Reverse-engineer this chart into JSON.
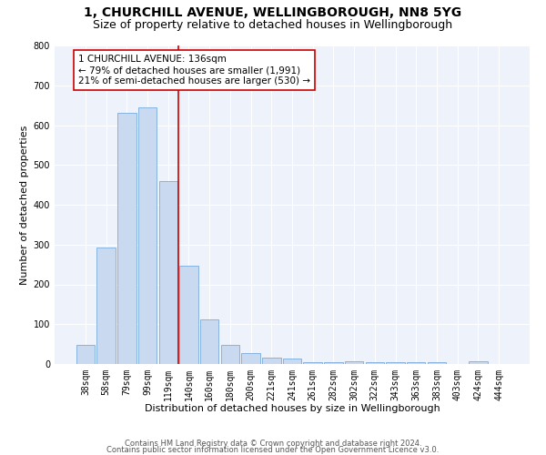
{
  "title1": "1, CHURCHILL AVENUE, WELLINGBOROUGH, NN8 5YG",
  "title2": "Size of property relative to detached houses in Wellingborough",
  "xlabel": "Distribution of detached houses by size in Wellingborough",
  "ylabel": "Number of detached properties",
  "categories": [
    "38sqm",
    "58sqm",
    "79sqm",
    "99sqm",
    "119sqm",
    "140sqm",
    "160sqm",
    "180sqm",
    "200sqm",
    "221sqm",
    "241sqm",
    "261sqm",
    "282sqm",
    "302sqm",
    "322sqm",
    "343sqm",
    "363sqm",
    "383sqm",
    "403sqm",
    "424sqm",
    "444sqm"
  ],
  "values": [
    47,
    293,
    630,
    645,
    460,
    248,
    111,
    49,
    27,
    15,
    14,
    5,
    5,
    7,
    5,
    4,
    4,
    4,
    0,
    8,
    0
  ],
  "bar_color": "#c9daf0",
  "bar_edge_color": "#7aabdc",
  "vline_color": "#cc0000",
  "annotation_text": "1 CHURCHILL AVENUE: 136sqm\n← 79% of detached houses are smaller (1,991)\n21% of semi-detached houses are larger (530) →",
  "annotation_box_color": "#ffffff",
  "annotation_box_edge_color": "#cc0000",
  "ylim": [
    0,
    800
  ],
  "yticks": [
    0,
    100,
    200,
    300,
    400,
    500,
    600,
    700,
    800
  ],
  "footer1": "Contains HM Land Registry data © Crown copyright and database right 2024.",
  "footer2": "Contains public sector information licensed under the Open Government Licence v3.0.",
  "bg_color": "#ffffff",
  "plot_bg_color": "#edf2fb",
  "title1_fontsize": 10,
  "title2_fontsize": 9,
  "axis_label_fontsize": 8,
  "tick_fontsize": 7,
  "footer_fontsize": 6,
  "annotation_fontsize": 7.5
}
